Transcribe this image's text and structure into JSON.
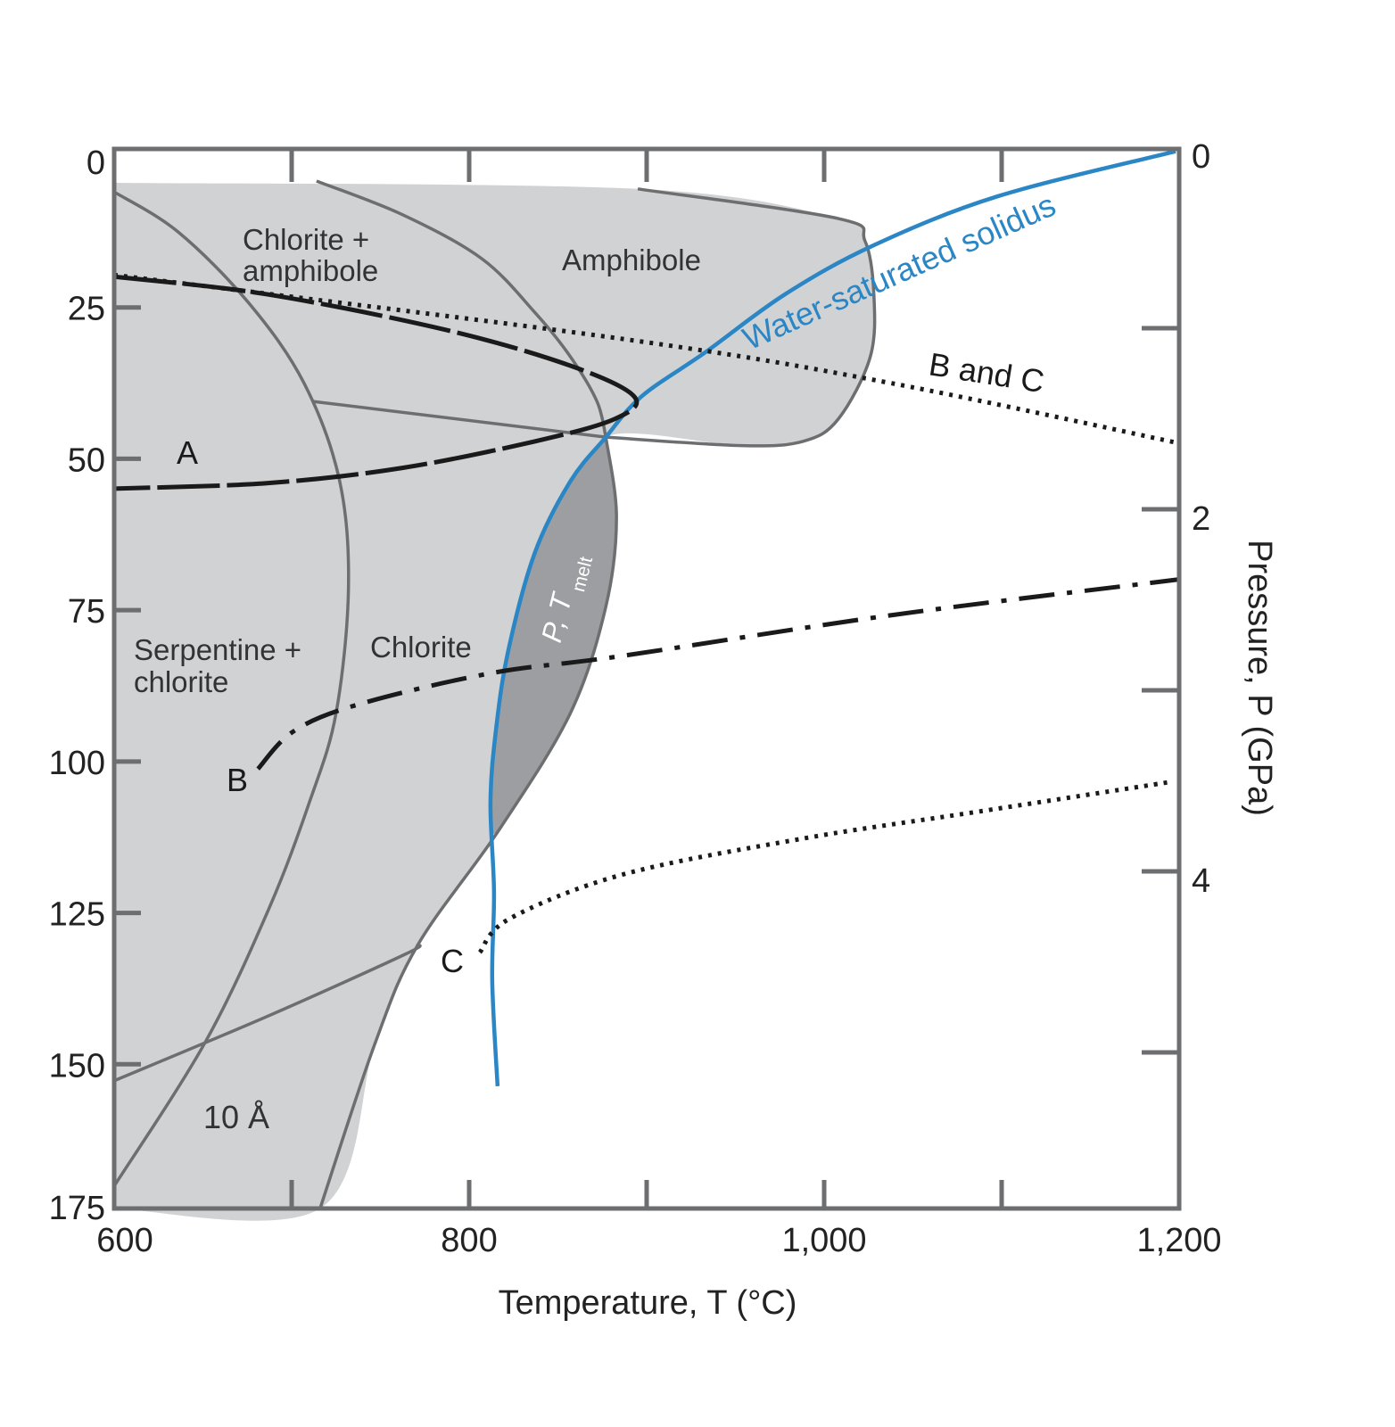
{
  "chart_data": {
    "type": "line",
    "title": "",
    "xlabel": "Temperature, T (°C)",
    "ylabel_left": "",
    "ylabel_right": "Pressure, P (GPa)",
    "xlim": [
      600,
      1200
    ],
    "ylim_left": [
      0,
      175
    ],
    "ylim_right_gpa": [
      0,
      5.85
    ],
    "x_tick_labels": [
      "600",
      "800",
      "1,000",
      "1,200"
    ],
    "x_tick_values": [
      600,
      700,
      800,
      900,
      1000,
      1100,
      1200
    ],
    "y_left_tick_labels": [
      "0",
      "25",
      "50",
      "75",
      "100",
      "125",
      "150",
      "175"
    ],
    "y_left_tick_values": [
      0,
      25,
      50,
      75,
      100,
      125,
      150,
      175
    ],
    "y_right_tick_labels": [
      "0",
      "2",
      "4"
    ],
    "y_right_tick_values": [
      0,
      1,
      2,
      3,
      4,
      5
    ],
    "grid": false,
    "colors": {
      "solidus": "#2b86c5",
      "stability_field": "#d1d2d4",
      "melt_field": "#9c9ea1",
      "boundary": "#6d6e70",
      "geotherm": "#1a1a1a"
    },
    "stability_field": [
      [
        600,
        5.6
      ],
      [
        895,
        6.6
      ],
      [
        1008,
        11.5
      ],
      [
        1023,
        15.2
      ],
      [
        1028,
        24
      ],
      [
        1026,
        34.3
      ],
      [
        1008,
        44.6
      ],
      [
        988,
        48.3
      ],
      [
        953,
        49
      ],
      [
        877,
        47.6
      ],
      [
        883,
        60.8
      ],
      [
        877,
        75.6
      ],
      [
        857,
        93.2
      ],
      [
        817,
        112.4
      ],
      [
        771,
        131.5
      ],
      [
        747,
        147.7
      ],
      [
        716,
        175
      ],
      [
        600,
        175
      ]
    ],
    "melt_field": [
      [
        877,
        47.6
      ],
      [
        857,
        54.9
      ],
      [
        837,
        66.7
      ],
      [
        822,
        82.9
      ],
      [
        815,
        96.2
      ],
      [
        812,
        108
      ],
      [
        817,
        112.4
      ],
      [
        857,
        93.2
      ],
      [
        877,
        75.6
      ],
      [
        883,
        60.8
      ],
      [
        877,
        47.6
      ]
    ],
    "boundaries": [
      {
        "points": [
          [
            895,
            6.6
          ],
          [
            1008,
            11.5
          ],
          [
            1023,
            15.2
          ],
          [
            1028,
            24
          ],
          [
            1026,
            34.3
          ],
          [
            1008,
            44.6
          ],
          [
            988,
            48.3
          ],
          [
            953,
            49
          ],
          [
            877,
            47.6
          ]
        ]
      },
      {
        "points": [
          [
            877,
            47.6
          ],
          [
            883,
            60.8
          ],
          [
            877,
            75.6
          ],
          [
            857,
            93.2
          ],
          [
            817,
            112.4
          ],
          [
            771,
            131.5
          ],
          [
            747,
            147.7
          ],
          [
            716,
            175
          ]
        ]
      },
      {
        "points": [
          [
            600,
            7.1
          ],
          [
            636,
            13.7
          ],
          [
            676,
            25.5
          ],
          [
            707,
            38.7
          ],
          [
            727,
            54.8
          ],
          [
            732,
            72.5
          ],
          [
            725,
            93.2
          ],
          [
            710,
            107.9
          ],
          [
            687,
            125.6
          ],
          [
            651,
            147.7
          ],
          [
            600,
            171.3
          ]
        ]
      },
      {
        "points": [
          [
            714,
            5.3
          ],
          [
            762,
            10.8
          ],
          [
            807,
            18.1
          ],
          [
            837,
            27
          ],
          [
            857,
            34.3
          ],
          [
            872,
            41.7
          ],
          [
            877,
            47.6
          ]
        ]
      },
      {
        "points": [
          [
            712,
            41.7
          ],
          [
            877,
            47.6
          ]
        ]
      },
      {
        "points": [
          [
            600,
            153.9
          ],
          [
            686,
            143.3
          ],
          [
            764,
            133
          ],
          [
            771,
            131.5
          ]
        ]
      }
    ],
    "series": [
      {
        "name": "Water-saturated solidus",
        "style": "solid",
        "points": [
          [
            1198,
            0.4
          ],
          [
            1098,
            7.8
          ],
          [
            1028,
            15.9
          ],
          [
            978,
            24
          ],
          [
            933,
            33.6
          ],
          [
            897,
            40.9
          ],
          [
            877,
            47.6
          ],
          [
            857,
            54.9
          ],
          [
            837,
            66.7
          ],
          [
            822,
            82.9
          ],
          [
            815,
            96.2
          ],
          [
            812,
            108
          ],
          [
            814,
            122.7
          ],
          [
            813,
            137.4
          ],
          [
            816,
            154.8
          ]
        ]
      },
      {
        "name": "A",
        "style": "dashed",
        "points": [
          [
            600,
            21.1
          ],
          [
            686,
            24
          ],
          [
            787,
            29.9
          ],
          [
            857,
            35.8
          ],
          [
            893,
            40.9
          ],
          [
            882,
            44.6
          ],
          [
            837,
            48.3
          ],
          [
            762,
            52.7
          ],
          [
            686,
            55.2
          ],
          [
            600,
            56.1
          ]
        ]
      },
      {
        "name": "B and C",
        "style": "dotted",
        "points": [
          [
            600,
            20.8
          ],
          [
            887,
            31.4
          ],
          [
            1038,
            38.7
          ],
          [
            1200,
            48.6
          ]
        ]
      },
      {
        "name": "B",
        "style": "dashdot",
        "points": [
          [
            681,
            102.4
          ],
          [
            701,
            96.2
          ],
          [
            737,
            91.8
          ],
          [
            812,
            86.6
          ],
          [
            887,
            83.7
          ],
          [
            1038,
            77
          ],
          [
            1200,
            71.1
          ]
        ]
      },
      {
        "name": "C",
        "style": "dotted",
        "points": [
          [
            806,
            132.7
          ],
          [
            823,
            127.1
          ],
          [
            887,
            119.8
          ],
          [
            988,
            113.9
          ],
          [
            1088,
            109.4
          ],
          [
            1194,
            104.6
          ]
        ]
      }
    ],
    "annotations": {
      "chlorite_amphibole_1": "Chlorite +",
      "chlorite_amphibole_2": "amphibole",
      "amphibole": "Amphibole",
      "solidus": "Water-saturated solidus",
      "b_and_c": "B and C",
      "a": "A",
      "serpentine_1": "Serpentine +",
      "serpentine_2": "chlorite",
      "chlorite": "Chlorite",
      "ptmelt_main": "P, T",
      "ptmelt_sub": "melt",
      "b": "B",
      "c": "C",
      "ten_a": "10 Å"
    }
  }
}
